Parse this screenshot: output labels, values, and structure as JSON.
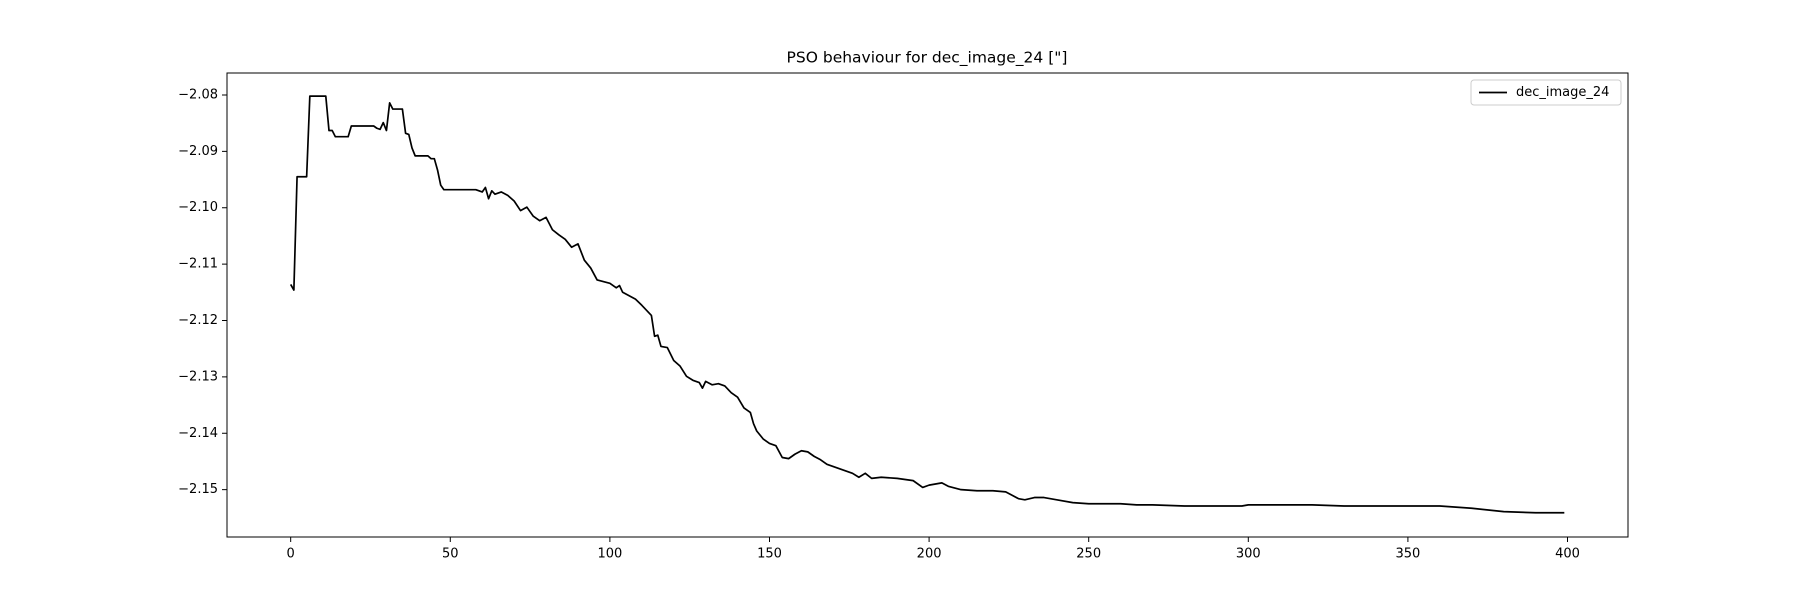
{
  "chart_data": {
    "type": "line",
    "title": "PSO behaviour for dec_image_24 [\"]",
    "x": [
      0,
      1,
      2,
      5,
      6,
      11,
      12,
      13,
      14,
      18,
      19,
      26,
      27,
      28,
      29,
      30,
      31,
      32,
      35,
      36,
      37,
      38,
      39,
      43,
      44,
      45,
      46,
      47,
      48,
      58,
      60,
      61,
      62,
      63,
      64,
      66,
      68,
      70,
      72,
      74,
      76,
      78,
      80,
      82,
      84,
      86,
      88,
      90,
      92,
      94,
      96,
      100,
      102,
      103,
      104,
      108,
      110,
      113,
      114,
      115,
      116,
      118,
      120,
      122,
      124,
      126,
      128,
      129,
      130,
      132,
      134,
      136,
      138,
      140,
      142,
      144,
      145,
      146,
      148,
      150,
      152,
      154,
      156,
      158,
      160,
      162,
      164,
      166,
      168,
      170,
      172,
      174,
      176,
      178,
      180,
      182,
      185,
      190,
      195,
      198,
      200,
      204,
      206,
      210,
      215,
      220,
      224,
      226,
      228,
      230,
      233,
      236,
      240,
      245,
      250,
      260,
      265,
      270,
      280,
      290,
      298,
      300,
      310,
      320,
      330,
      340,
      350,
      360,
      365,
      370,
      380,
      390,
      399
    ],
    "series": [
      {
        "name": "dec_image_24",
        "color": "#000000",
        "values": [
          -2.1136,
          -2.1146,
          -2.0945,
          -2.0945,
          -2.0802,
          -2.0802,
          -2.0863,
          -2.0863,
          -2.0874,
          -2.0874,
          -2.0855,
          -2.0855,
          -2.0859,
          -2.0861,
          -2.0849,
          -2.0863,
          -2.0814,
          -2.0825,
          -2.0825,
          -2.0868,
          -2.087,
          -2.0894,
          -2.0908,
          -2.0908,
          -2.0913,
          -2.0913,
          -2.0933,
          -2.096,
          -2.0968,
          -2.0968,
          -2.0972,
          -2.0964,
          -2.0984,
          -2.097,
          -2.0976,
          -2.0972,
          -2.0978,
          -2.0988,
          -2.1005,
          -2.0999,
          -2.1015,
          -2.1023,
          -2.1017,
          -2.1039,
          -2.1048,
          -2.1056,
          -2.107,
          -2.1064,
          -2.1093,
          -2.1107,
          -2.1128,
          -2.1134,
          -2.1142,
          -2.1138,
          -2.115,
          -2.1162,
          -2.1173,
          -2.1191,
          -2.1228,
          -2.1226,
          -2.1246,
          -2.1248,
          -2.1271,
          -2.1281,
          -2.1299,
          -2.1306,
          -2.131,
          -2.132,
          -2.1308,
          -2.1314,
          -2.1312,
          -2.1316,
          -2.1328,
          -2.1336,
          -2.1355,
          -2.1363,
          -2.1383,
          -2.1396,
          -2.141,
          -2.1418,
          -2.1422,
          -2.1443,
          -2.1445,
          -2.1437,
          -2.1431,
          -2.1433,
          -2.1441,
          -2.1447,
          -2.1455,
          -2.1459,
          -2.1463,
          -2.1467,
          -2.1471,
          -2.1478,
          -2.1471,
          -2.148,
          -2.1478,
          -2.148,
          -2.1484,
          -2.1496,
          -2.1492,
          -2.1488,
          -2.1494,
          -2.15,
          -2.1502,
          -2.1502,
          -2.1504,
          -2.151,
          -2.1516,
          -2.1518,
          -2.1514,
          -2.1514,
          -2.1518,
          -2.1523,
          -2.1525,
          -2.1525,
          -2.1527,
          -2.1527,
          -2.1529,
          -2.1529,
          -2.1529,
          -2.1527,
          -2.1527,
          -2.1527,
          -2.1529,
          -2.1529,
          -2.1529,
          -2.1529,
          -2.1531,
          -2.1533,
          -2.1539,
          -2.1541,
          -2.1541
        ]
      }
    ],
    "xlim": [
      -19.95,
      418.95
    ],
    "xticks": [
      0,
      50,
      100,
      150,
      200,
      250,
      300,
      350,
      400
    ],
    "ylim": [
      -2.1584,
      -2.0761
    ],
    "yticks": [
      {
        "value": -2.08,
        "label": "−2.08"
      },
      {
        "value": -2.09,
        "label": "−2.09"
      },
      {
        "value": -2.1,
        "label": "−2.10"
      },
      {
        "value": -2.11,
        "label": "−2.11"
      },
      {
        "value": -2.12,
        "label": "−2.12"
      },
      {
        "value": -2.13,
        "label": "−2.13"
      },
      {
        "value": -2.14,
        "label": "−2.14"
      },
      {
        "value": -2.15,
        "label": "−2.15"
      }
    ],
    "grid": false,
    "legend": "upper right"
  }
}
